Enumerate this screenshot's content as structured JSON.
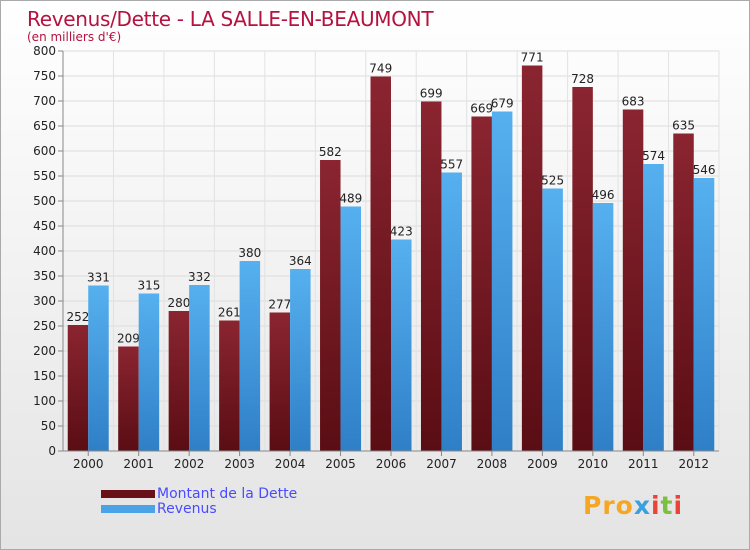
{
  "title": "Revenus/Dette - LA SALLE-EN-BEAUMONT",
  "subtitle": "(en milliers d'€)",
  "logo": {
    "p1": "Pro",
    "p2": "x",
    "p3": "i",
    "p4": "t",
    "p5": "i"
  },
  "colors": {
    "series1": "#7a1a22",
    "series2": "#4aa3e6",
    "title": "#b5123f",
    "legend_text": "#4a4aff"
  },
  "chart_data": {
    "type": "bar",
    "categories": [
      "2000",
      "2001",
      "2002",
      "2003",
      "2004",
      "2005",
      "2006",
      "2007",
      "2008",
      "2009",
      "2010",
      "2011",
      "2012"
    ],
    "series": [
      {
        "name": "Montant de la Dette",
        "values": [
          252,
          209,
          280,
          261,
          277,
          582,
          749,
          699,
          669,
          771,
          728,
          683,
          635
        ]
      },
      {
        "name": "Revenus",
        "values": [
          331,
          315,
          332,
          380,
          364,
          489,
          423,
          557,
          679,
          525,
          496,
          574,
          546
        ]
      }
    ],
    "yticks": [
      0,
      50,
      100,
      150,
      200,
      250,
      300,
      350,
      400,
      450,
      500,
      550,
      600,
      650,
      700,
      750,
      800
    ],
    "ylim": [
      0,
      800
    ],
    "grid": true,
    "legend_position": "bottom-left"
  }
}
